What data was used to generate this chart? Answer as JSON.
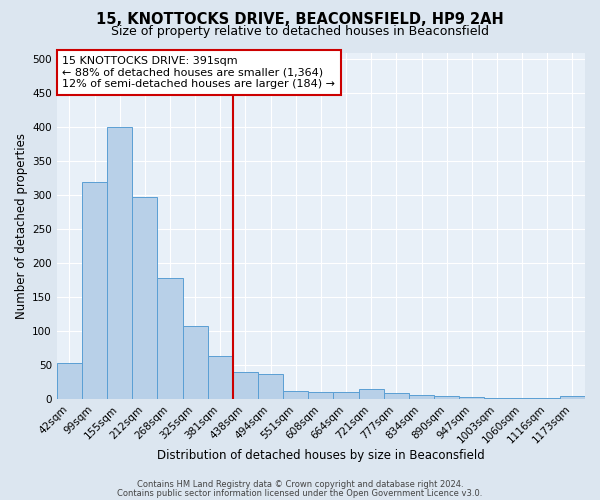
{
  "title1": "15, KNOTTOCKS DRIVE, BEACONSFIELD, HP9 2AH",
  "title2": "Size of property relative to detached houses in Beaconsfield",
  "xlabel": "Distribution of detached houses by size in Beaconsfield",
  "ylabel": "Number of detached properties",
  "footer1": "Contains HM Land Registry data © Crown copyright and database right 2024.",
  "footer2": "Contains public sector information licensed under the Open Government Licence v3.0.",
  "categories": [
    "42sqm",
    "99sqm",
    "155sqm",
    "212sqm",
    "268sqm",
    "325sqm",
    "381sqm",
    "438sqm",
    "494sqm",
    "551sqm",
    "608sqm",
    "664sqm",
    "721sqm",
    "777sqm",
    "834sqm",
    "890sqm",
    "947sqm",
    "1003sqm",
    "1060sqm",
    "1116sqm",
    "1173sqm"
  ],
  "values": [
    53,
    320,
    400,
    298,
    178,
    108,
    63,
    40,
    37,
    11,
    10,
    10,
    14,
    8,
    6,
    5,
    3,
    2,
    1,
    1,
    4
  ],
  "bar_color": "#b8d0e8",
  "bar_edge_color": "#5a9fd4",
  "vline_x_index": 6,
  "vline_color": "#cc0000",
  "annotation_text": "15 KNOTTOCKS DRIVE: 391sqm\n← 88% of detached houses are smaller (1,364)\n12% of semi-detached houses are larger (184) →",
  "annotation_box_color": "#ffffff",
  "annotation_box_edge": "#cc0000",
  "ylim": [
    0,
    510
  ],
  "yticks": [
    0,
    50,
    100,
    150,
    200,
    250,
    300,
    350,
    400,
    450,
    500
  ],
  "bg_color": "#dce6f0",
  "plot_bg_color": "#e8f0f8",
  "title1_fontsize": 10.5,
  "title2_fontsize": 9,
  "xlabel_fontsize": 8.5,
  "ylabel_fontsize": 8.5,
  "tick_fontsize": 7.5,
  "annotation_fontsize": 8,
  "grid_color": "#ffffff"
}
